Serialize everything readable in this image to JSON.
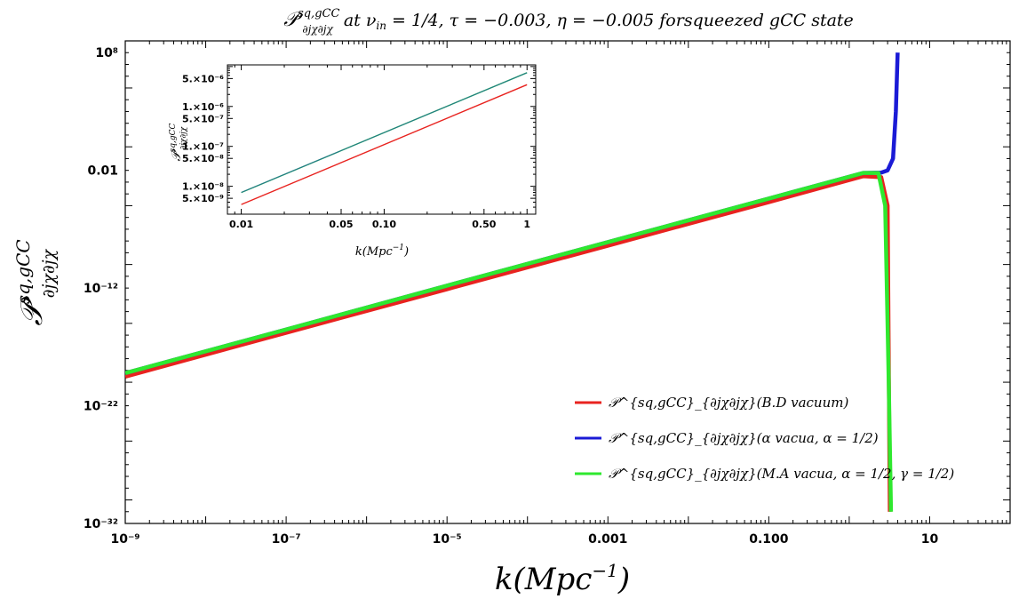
{
  "chart_data": [
    {
      "type": "line",
      "title": "𝒫^{sq,gCC}_{∂jχ∂jχ} at ν_in = 1/4, τ = −0.003, η = −0.005 forsqueezed gCC state",
      "xlabel": "k(Mpc⁻¹)",
      "ylabel": "𝒫^{sq,gCC}_{∂jχ∂jχ}",
      "x_scale": "log",
      "y_scale": "log",
      "xlim": [
        1e-09,
        100
      ],
      "ylim": [
        1e-32,
        1000000000.0
      ],
      "grid": false,
      "legend_position": "bottom-right",
      "x_ticks": [
        1e-09,
        1e-07,
        1e-05,
        0.001,
        0.1,
        10
      ],
      "x_tick_labels": [
        "10⁻⁹",
        "10⁻⁷",
        "10⁻⁵",
        "0.001",
        "0.100",
        "10"
      ],
      "y_ticks": [
        1e-32,
        1e-22,
        1e-12,
        0.01,
        100000000.0
      ],
      "y_tick_labels": [
        "10⁻³²",
        "10⁻²²",
        "10⁻¹²",
        "0.01",
        "10⁸"
      ],
      "series": [
        {
          "name": "𝒫^{sq,gCC}_{∂jχ∂jχ}(B.D vacuum)",
          "color": "#e8231f",
          "x": [
            1e-09,
            1e-07,
            1e-05,
            0.001,
            0.1,
            1.5,
            2.5,
            3.0,
            3.2
          ],
          "y": [
            3e-20,
            1.6e-16,
            8e-13,
            4e-09,
            2e-05,
            0.0032,
            0.0026,
            1e-05,
            1e-31
          ]
        },
        {
          "name": "𝒫^{sq,gCC}_{∂jχ∂jχ}(α vacua, α = 1/2)",
          "color": "#1b1bd6",
          "x": [
            1e-09,
            1e-07,
            1e-05,
            0.001,
            0.1,
            1.5,
            2.5,
            3.0,
            3.5,
            3.8,
            4.0
          ],
          "y": [
            6e-20,
            3e-16,
            1.6e-12,
            8e-09,
            4e-05,
            0.006,
            0.0065,
            0.01,
            0.1,
            1000.0,
            100000000.0
          ]
        },
        {
          "name": "𝒫^{sq,gCC}_{∂jχ∂jχ}(M.A vacua, α = 1/2, γ = 1/2)",
          "color": "#2fe82f",
          "x": [
            1e-09,
            1e-07,
            1e-05,
            0.001,
            0.1,
            1.5,
            2.3,
            2.8,
            3.1,
            3.3
          ],
          "y": [
            6e-20,
            3e-16,
            1.6e-12,
            8e-09,
            4e-05,
            0.006,
            0.006,
            1e-05,
            1e-20,
            1e-31
          ]
        }
      ]
    },
    {
      "type": "line",
      "title": "",
      "xlabel": "k(Mpc⁻¹)",
      "ylabel": "𝒫^{sq,gCC}_{∂jχ∂jχ}",
      "x_scale": "log",
      "y_scale": "log",
      "xlim": [
        0.008,
        1.15
      ],
      "ylim": [
        2e-09,
        1.1e-05
      ],
      "x_ticks": [
        0.01,
        0.05,
        0.1,
        0.5,
        1
      ],
      "x_tick_labels": [
        "0.01",
        "0.05",
        "0.10",
        "0.50",
        "1"
      ],
      "y_ticks": [
        5e-09,
        1e-08,
        5e-08,
        1e-07,
        5e-07,
        1e-06,
        5e-06
      ],
      "y_tick_labels": [
        "5.×10⁻⁹",
        "1.×10⁻⁸",
        "5.×10⁻⁸",
        "1.×10⁻⁷",
        "5.×10⁻⁷",
        "1.×10⁻⁶",
        "5.×10⁻⁶"
      ],
      "series": [
        {
          "name": "",
          "color": "#e8231f",
          "x": [
            0.01,
            1
          ],
          "y": [
            3.5e-09,
            3.5e-06
          ]
        },
        {
          "name": "",
          "color": "#2fe82f",
          "x": [
            0.01,
            1
          ],
          "y": [
            7e-09,
            7e-06
          ]
        },
        {
          "name": "",
          "color": "#1b1bd6",
          "x": [
            0.01,
            1
          ],
          "y": [
            7e-09,
            7e-06
          ]
        }
      ]
    }
  ]
}
